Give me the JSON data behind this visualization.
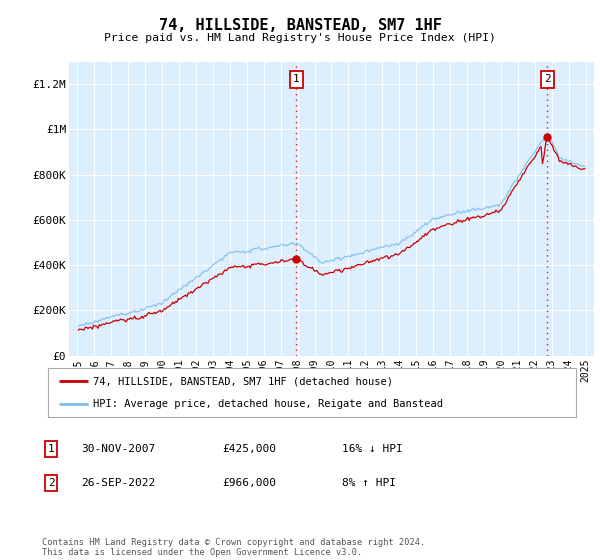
{
  "title": "74, HILLSIDE, BANSTEAD, SM7 1HF",
  "subtitle": "Price paid vs. HM Land Registry's House Price Index (HPI)",
  "ylabel_ticks": [
    "£0",
    "£200K",
    "£400K",
    "£600K",
    "£800K",
    "£1M",
    "£1.2M"
  ],
  "ytick_values": [
    0,
    200000,
    400000,
    600000,
    800000,
    1000000,
    1200000
  ],
  "ylim": [
    0,
    1300000
  ],
  "xlim_start": 1994.5,
  "xlim_end": 2025.5,
  "hpi_color": "#7fbfea",
  "price_color": "#cc0000",
  "vline_color": "#cc0000",
  "marker1_date": 2007.917,
  "marker1_price": 425000,
  "marker1_label": "1",
  "marker2_date": 2022.75,
  "marker2_price": 966000,
  "marker2_label": "2",
  "legend_line1": "74, HILLSIDE, BANSTEAD, SM7 1HF (detached house)",
  "legend_line2": "HPI: Average price, detached house, Reigate and Banstead",
  "table_row1_num": "1",
  "table_row1_date": "30-NOV-2007",
  "table_row1_price": "£425,000",
  "table_row1_hpi": "16% ↓ HPI",
  "table_row2_num": "2",
  "table_row2_date": "26-SEP-2022",
  "table_row2_price": "£966,000",
  "table_row2_hpi": "8% ↑ HPI",
  "footnote": "Contains HM Land Registry data © Crown copyright and database right 2024.\nThis data is licensed under the Open Government Licence v3.0.",
  "background_color": "#ffffff",
  "plot_bg_color": "#ddeeff"
}
